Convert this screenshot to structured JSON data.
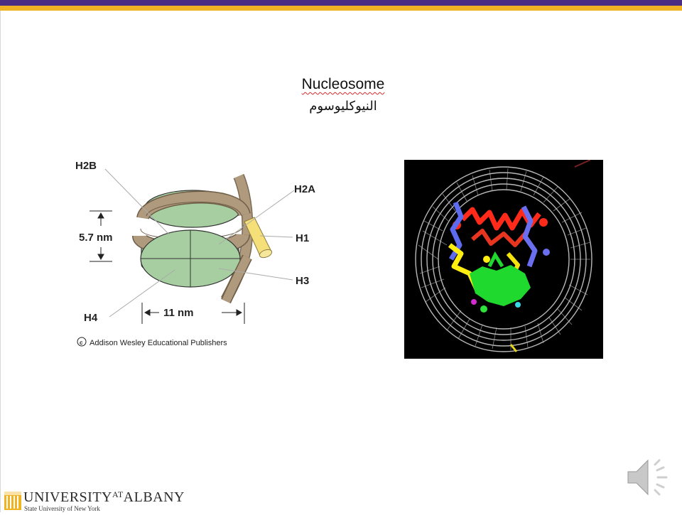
{
  "slide": {
    "title": "Nucleosome",
    "subtitle": "النيوكليوسوم"
  },
  "diagram": {
    "labels": {
      "h2b": "H2B",
      "h2a": "H2A",
      "h1": "H1",
      "h3": "H3",
      "h4": "H4",
      "height": "5.7 nm",
      "width": "11 nm"
    },
    "copyright": "Addison Wesley Educational Publishers",
    "colors": {
      "histone": "#a7cea1",
      "dna": "#b09a7e",
      "h1": "#f4df78"
    }
  },
  "footer": {
    "name_left": "UNIVERSITY",
    "name_at": "AT",
    "name_right": "ALBANY",
    "subline": "State University of New York"
  },
  "icons": [
    "speaker-icon",
    "university-logo-icon"
  ]
}
